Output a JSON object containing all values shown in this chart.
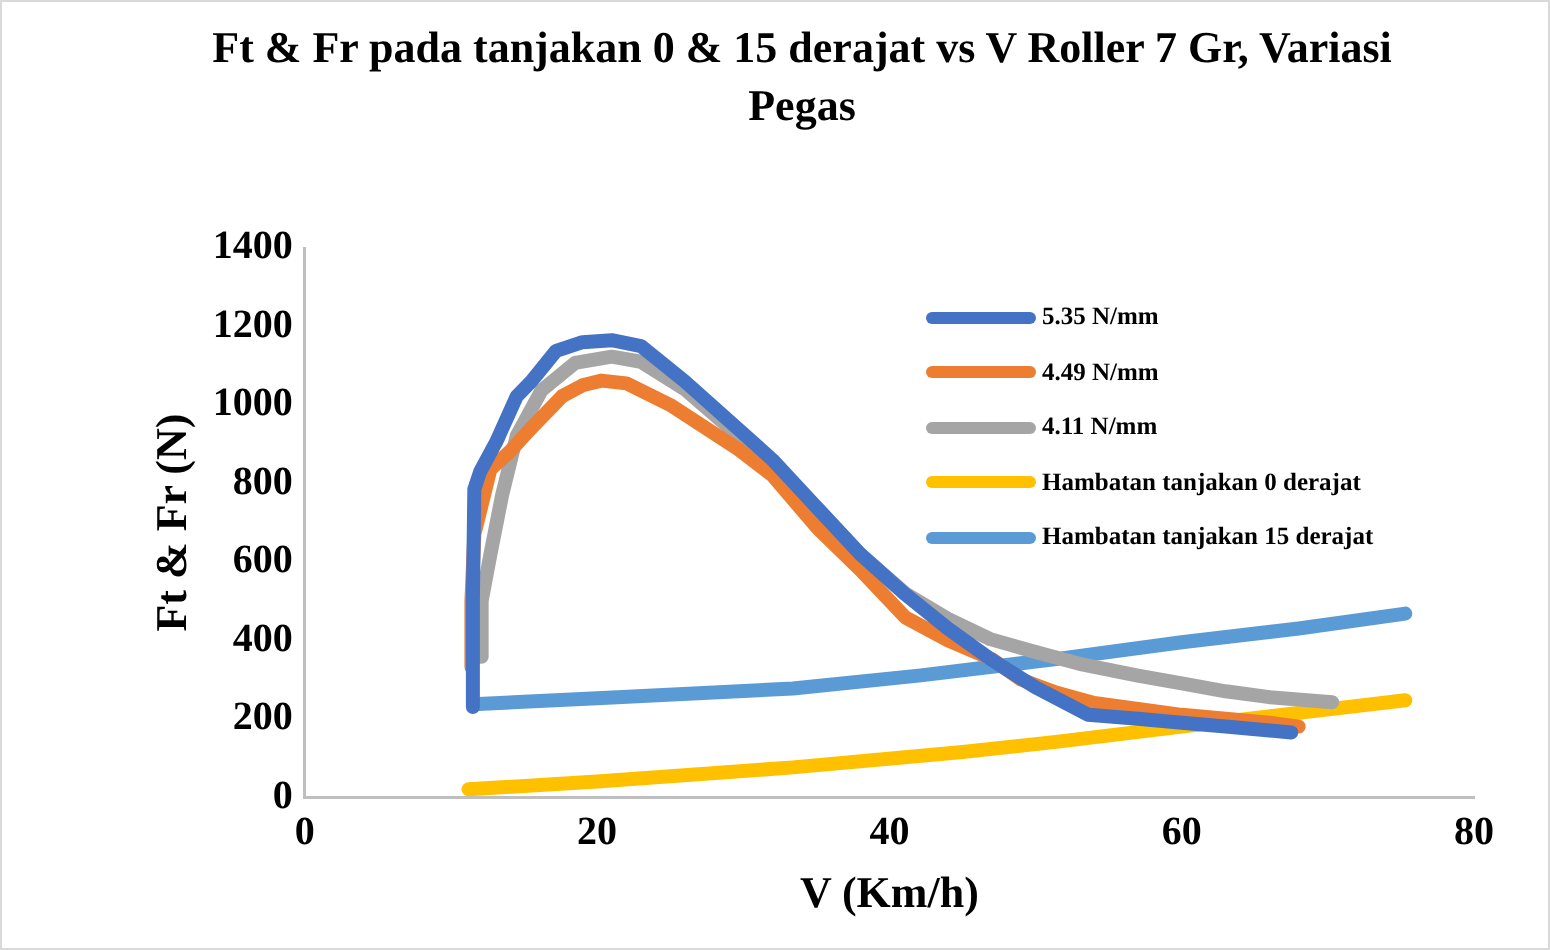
{
  "chart_data": {
    "type": "line",
    "title": "Ft & Fr pada tanjakan 0 & 15 derajat vs V Roller 7 Gr, Variasi Pegas",
    "xlabel": "V (Km/h)",
    "ylabel": "Ft & Fr (N)",
    "xlim": [
      0,
      80
    ],
    "xticks": [
      0,
      20,
      40,
      60,
      80
    ],
    "ylim": [
      0,
      1400
    ],
    "yticks": [
      0,
      200,
      400,
      600,
      800,
      1000,
      1200,
      1400
    ],
    "grid": false,
    "legend": "top right",
    "marker": "none",
    "line_style": "solid",
    "series": [
      {
        "name": "5.35 N/mm",
        "color": "#4472c4",
        "x": [
          11.5,
          11.5,
          11.6,
          12,
          13.1,
          14.5,
          15.5,
          17.2,
          19,
          21,
          23,
          26,
          29.7,
          32,
          35,
          38,
          41,
          44,
          47,
          50,
          53.6,
          57,
          60,
          63,
          66,
          67.5
        ],
        "values": [
          230,
          500,
          785,
          830,
          906,
          1022,
          1060,
          1138,
          1160,
          1165,
          1150,
          1060,
          937,
          860,
          740,
          620,
          520,
          430,
          350,
          280,
          210,
          200,
          190,
          180,
          170,
          165
        ]
      },
      {
        "name": "4.49 N/mm",
        "color": "#ed7d31",
        "x": [
          11.4,
          11.4,
          11.6,
          12.7,
          14,
          15.4,
          17.6,
          19,
          20.3,
          22,
          25,
          29.7,
          32,
          35.1,
          38,
          41.1,
          44,
          47,
          49,
          51.4,
          54,
          57,
          60,
          63,
          66,
          68
        ],
        "values": [
          332,
          500,
          670,
          836,
          880,
          937,
          1022,
          1050,
          1062,
          1055,
          1000,
          886,
          820,
          685,
          580,
          458,
          400,
          352,
          300,
          267,
          240,
          225,
          210,
          200,
          190,
          180
        ]
      },
      {
        "name": "4.11 N/mm",
        "color": "#a5a5a5",
        "x": [
          12,
          12.1,
          12.7,
          13.5,
          14.5,
          16.2,
          18.5,
          21,
          23,
          26,
          29.7,
          32,
          35.1,
          38,
          41.1,
          44,
          46.9,
          50,
          53,
          57,
          60,
          63,
          66,
          70.3
        ],
        "values": [
          358,
          500,
          619,
          770,
          921,
          1037,
          1107,
          1123,
          1110,
          1040,
          921,
          850,
          735,
          620,
          519,
          455,
          403,
          370,
          340,
          310,
          290,
          270,
          255,
          242
        ]
      },
      {
        "name": "Hambatan tanjakan 0 derajat",
        "color": "#ffc000",
        "x": [
          11.2,
          20,
          33.4,
          45,
          51.4,
          60,
          68,
          75.3
        ],
        "values": [
          20,
          40,
          76,
          115,
          141,
          180,
          215,
          247
        ]
      },
      {
        "name": "Hambatan tanjakan 15 derajat",
        "color": "#5b9bd5",
        "x": [
          11.5,
          20,
          33.4,
          42,
          51.4,
          60,
          68,
          75.3
        ],
        "values": [
          237,
          252,
          277,
          310,
          352,
          395,
          430,
          468
        ]
      }
    ]
  }
}
